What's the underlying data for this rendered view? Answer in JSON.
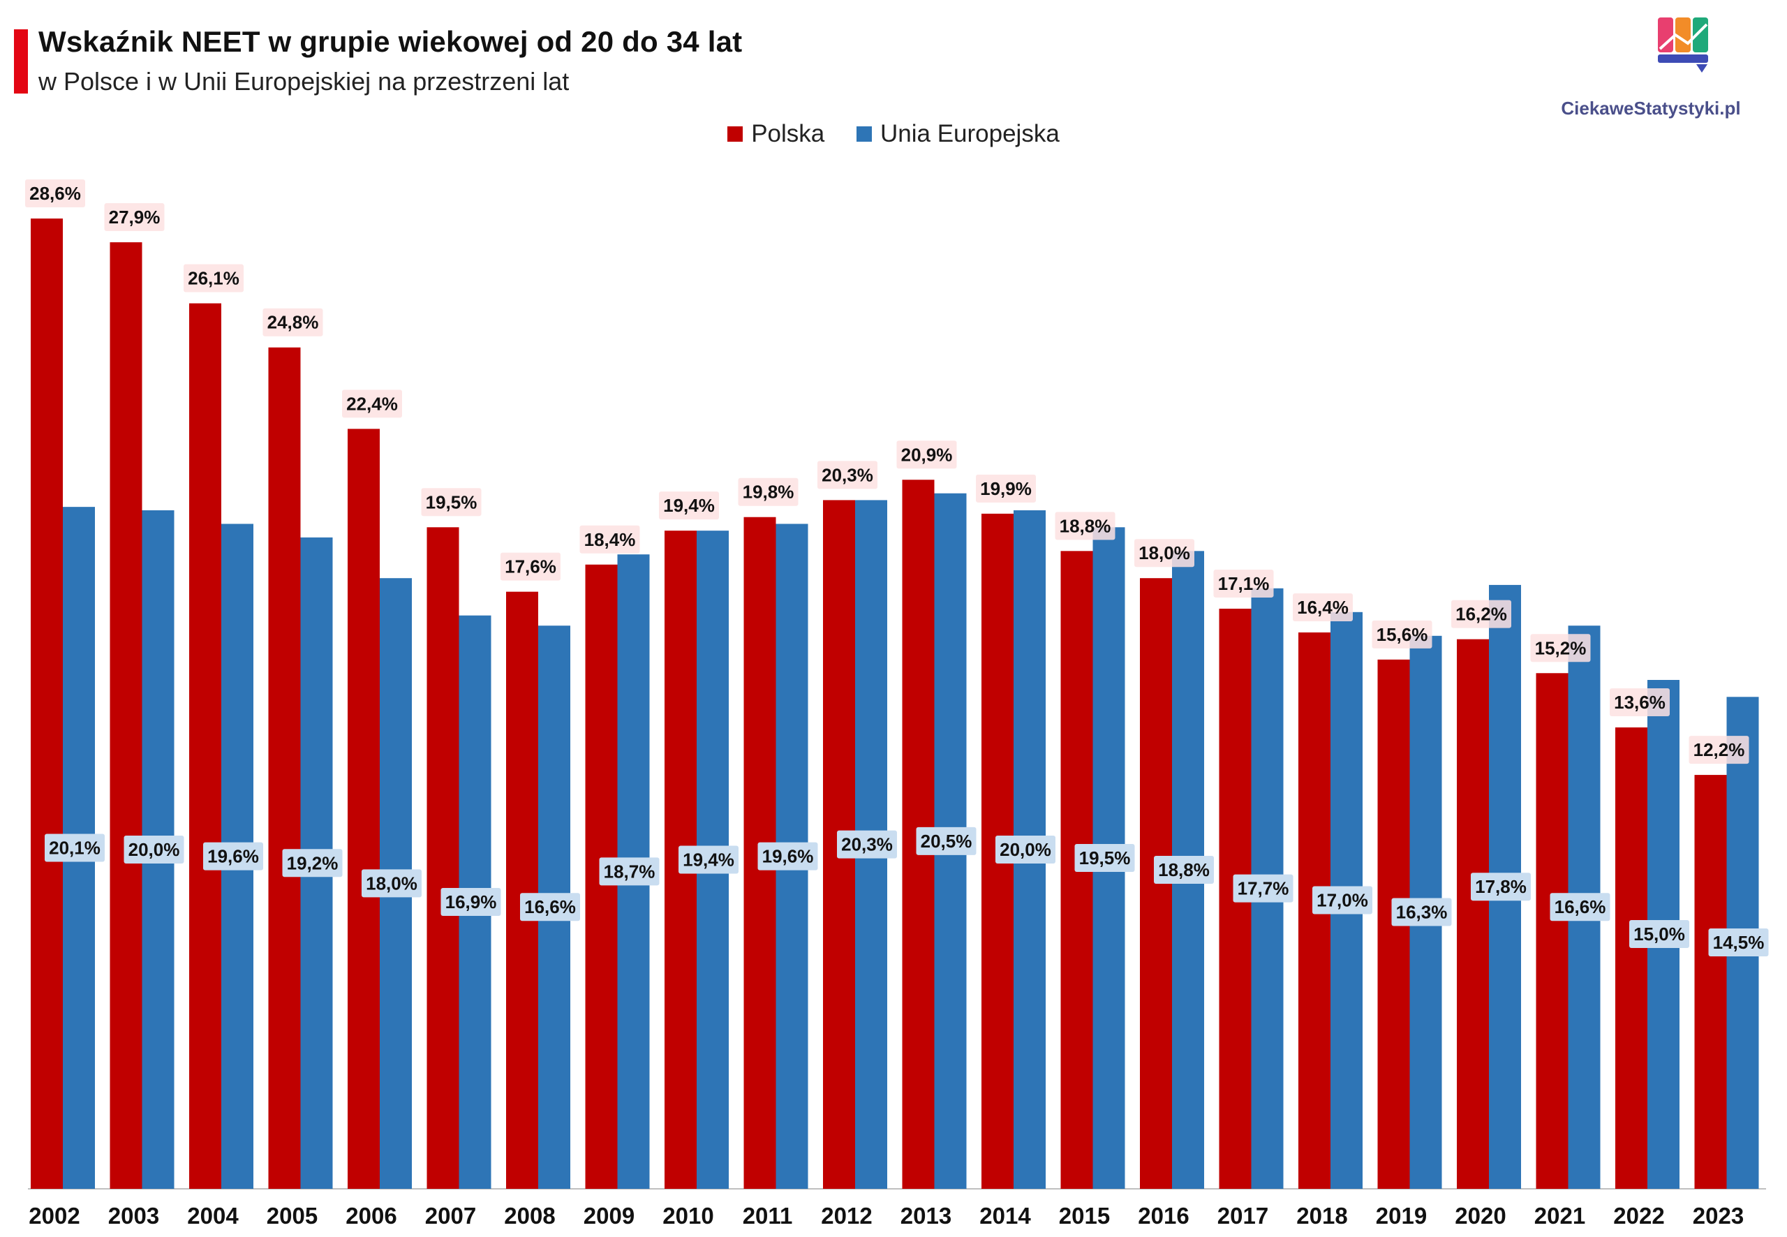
{
  "header": {
    "title": "Wskaźnik NEET w grupie wiekowej od 20 do 34 lat",
    "subtitle": "w Polsce i w Unii Europejskiej na przestrzeni lat"
  },
  "logo": {
    "text": "CiekaweStatystyki.pl"
  },
  "colors": {
    "polska": "#c00000",
    "ue": "#2e75b6",
    "polska_label_bg": "#fde2e2",
    "ue_label_bg": "#c9ddf0",
    "accent": "#e30613"
  },
  "chart_data": {
    "type": "bar",
    "title": "Wskaźnik NEET w grupie wiekowej od 20 do 34 lat",
    "subtitle": "w Polsce i w Unii Europejskiej na przestrzeni lat",
    "xlabel": "",
    "ylabel": "",
    "ylim": [
      0,
      30
    ],
    "grid": false,
    "legend_position": "top-center",
    "categories": [
      "2002",
      "2003",
      "2004",
      "2005",
      "2006",
      "2007",
      "2008",
      "2009",
      "2010",
      "2011",
      "2012",
      "2013",
      "2014",
      "2015",
      "2016",
      "2017",
      "2018",
      "2019",
      "2020",
      "2021",
      "2022",
      "2023"
    ],
    "series": [
      {
        "name": "Polska",
        "values": [
          28.6,
          27.9,
          26.1,
          24.8,
          22.4,
          19.5,
          17.6,
          18.4,
          19.4,
          19.8,
          20.3,
          20.9,
          19.9,
          18.8,
          18.0,
          17.1,
          16.4,
          15.6,
          16.2,
          15.2,
          13.6,
          12.2
        ],
        "labels": [
          "28,6%",
          "27,9%",
          "26,1%",
          "24,8%",
          "22,4%",
          "19,5%",
          "17,6%",
          "18,4%",
          "19,4%",
          "19,8%",
          "20,3%",
          "20,9%",
          "19,9%",
          "18,8%",
          "18,0%",
          "17,1%",
          "16,4%",
          "15,6%",
          "16,2%",
          "15,2%",
          "13,6%",
          "12,2%"
        ]
      },
      {
        "name": "Unia Europejska",
        "values": [
          20.1,
          20.0,
          19.6,
          19.2,
          18.0,
          16.9,
          16.6,
          18.7,
          19.4,
          19.6,
          20.3,
          20.5,
          20.0,
          19.5,
          18.8,
          17.7,
          17.0,
          16.3,
          17.8,
          16.6,
          15.0,
          14.5
        ],
        "labels": [
          "20,1%",
          "20,0%",
          "19,6%",
          "19,2%",
          "18,0%",
          "16,9%",
          "16,6%",
          "18,7%",
          "19,4%",
          "19,6%",
          "20,3%",
          "20,5%",
          "20,0%",
          "19,5%",
          "18,8%",
          "17,7%",
          "17,0%",
          "16,3%",
          "17,8%",
          "16,6%",
          "15,0%",
          "14,5%"
        ]
      }
    ]
  }
}
